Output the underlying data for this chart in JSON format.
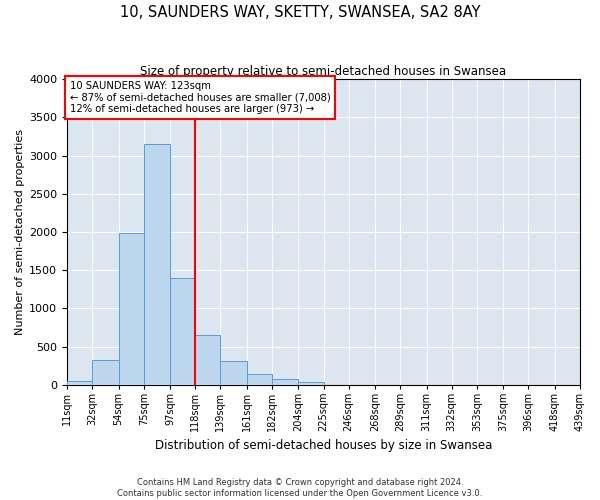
{
  "title": "10, SAUNDERS WAY, SKETTY, SWANSEA, SA2 8AY",
  "subtitle": "Size of property relative to semi-detached houses in Swansea",
  "xlabel": "Distribution of semi-detached houses by size in Swansea",
  "ylabel": "Number of semi-detached properties",
  "bin_labels": [
    "11sqm",
    "32sqm",
    "54sqm",
    "75sqm",
    "97sqm",
    "118sqm",
    "139sqm",
    "161sqm",
    "182sqm",
    "204sqm",
    "225sqm",
    "246sqm",
    "268sqm",
    "289sqm",
    "311sqm",
    "332sqm",
    "353sqm",
    "375sqm",
    "396sqm",
    "418sqm",
    "439sqm"
  ],
  "bar_values": [
    50,
    320,
    1980,
    3150,
    1400,
    650,
    310,
    140,
    75,
    30,
    0,
    0,
    0,
    0,
    0,
    0,
    0,
    0,
    0,
    0
  ],
  "bar_color": "#bdd7ee",
  "bar_edge_color": "#5b9bd5",
  "bin_edges": [
    11,
    32,
    54,
    75,
    97,
    118,
    139,
    161,
    182,
    204,
    225,
    246,
    268,
    289,
    311,
    332,
    353,
    375,
    396,
    418,
    439
  ],
  "ylim": [
    0,
    4000
  ],
  "yticks": [
    0,
    500,
    1000,
    1500,
    2000,
    2500,
    3000,
    3500,
    4000
  ],
  "annotation_title": "10 SAUNDERS WAY: 123sqm",
  "annotation_line1": "← 87% of semi-detached houses are smaller (7,008)",
  "annotation_line2": "12% of semi-detached houses are larger (973) →",
  "vline_color": "red",
  "annotation_box_edgecolor": "red",
  "footer1": "Contains HM Land Registry data © Crown copyright and database right 2024.",
  "footer2": "Contains public sector information licensed under the Open Government Licence v3.0.",
  "plot_background": "#dce6f1",
  "vline_xindex": 5
}
